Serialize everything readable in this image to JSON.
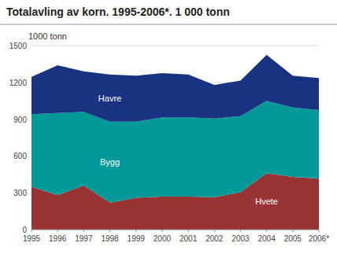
{
  "chart_data": {
    "type": "area",
    "stacked": true,
    "title": "Totalavling av korn. 1995-2006*. 1 000 tonn",
    "y_label": "1000 tonn",
    "x": [
      1995,
      1996,
      1997,
      1998,
      1999,
      2000,
      2001,
      2002,
      2003,
      2004,
      2005,
      2006
    ],
    "series": [
      {
        "name": "Hvete",
        "color": "#993333",
        "values": [
          350,
          280,
          360,
          220,
          260,
          270,
          270,
          265,
          305,
          460,
          430,
          415
        ]
      },
      {
        "name": "Bygg",
        "color": "#009999",
        "values": [
          590,
          670,
          600,
          660,
          620,
          645,
          645,
          640,
          620,
          590,
          565,
          560
        ]
      },
      {
        "name": "Havre",
        "color": "#1A3380",
        "values": [
          305,
          390,
          330,
          385,
          375,
          360,
          350,
          275,
          290,
          375,
          260,
          260
        ]
      }
    ],
    "xlim": [
      1995,
      2006
    ],
    "xticks": [
      1995,
      1996,
      1997,
      1998,
      1999,
      2000,
      2001,
      2002,
      2003,
      2004,
      2005,
      {
        "value": 2006,
        "label": "2006*"
      }
    ],
    "ylim": [
      0,
      1500
    ],
    "yticks": [
      0,
      300,
      600,
      900,
      1200,
      1500
    ],
    "grid": true
  }
}
